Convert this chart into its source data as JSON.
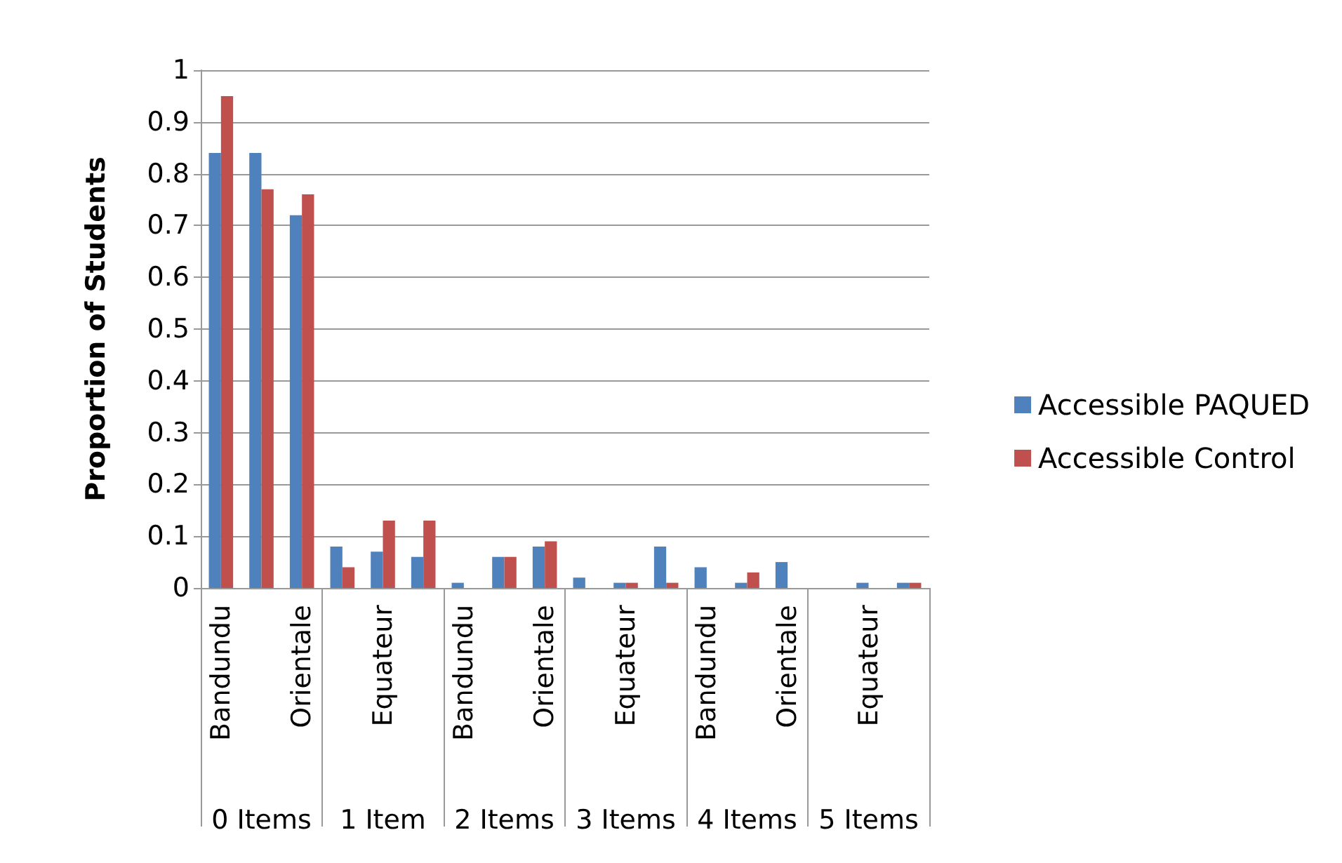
{
  "chart_data": {
    "type": "bar",
    "ylabel": "Proportion of Students",
    "categories": [
      "Bandundu",
      null,
      "Orientale",
      null,
      "Equateur",
      null,
      "Bandundu",
      null,
      "Orientale",
      null,
      "Equateur",
      null,
      "Bandundu",
      null,
      "Orientale",
      null,
      "Equateur",
      null
    ],
    "series": [
      {
        "name": "Accessible PAQUED",
        "color": "#4f81bd",
        "values": [
          0.84,
          0.84,
          0.72,
          0.08,
          0.07,
          0.06,
          0.01,
          0.06,
          0.08,
          0.02,
          0.01,
          0.08,
          0.04,
          0.01,
          0.05,
          0,
          0.01,
          0.01
        ]
      },
      {
        "name": "Accessible Control",
        "color": "#c0504d",
        "values": [
          0.95,
          0.77,
          0.76,
          0.04,
          0.13,
          0.13,
          0,
          0.06,
          0.09,
          0,
          0.01,
          0.01,
          0,
          0.03,
          0,
          0,
          0,
          0.01
        ]
      }
    ],
    "annotations": [
      "0 Items",
      "1 Item",
      "2 Items",
      "3 Items",
      "4 Items",
      "5 Items"
    ],
    "ylim": [
      0,
      1
    ],
    "yticks": [
      0,
      0.1,
      0.2,
      0.3,
      0.4,
      0.5,
      0.6,
      0.7,
      0.8,
      0.9,
      1
    ],
    "grid": "y",
    "legend": "right"
  }
}
